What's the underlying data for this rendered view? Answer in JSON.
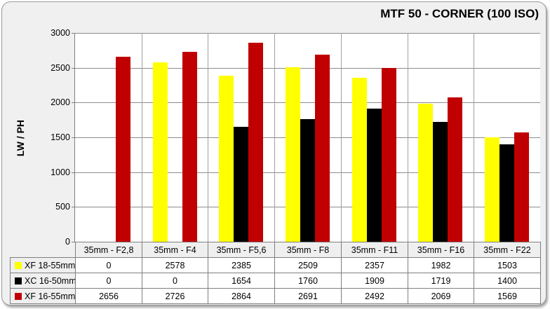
{
  "chart_data": {
    "type": "bar",
    "title": "MTF 50 - CORNER (100 ISO)",
    "ylabel": "LW / PH",
    "xlabel": "",
    "ylim": [
      0,
      3000
    ],
    "yticks": [
      0,
      500,
      1000,
      1500,
      2000,
      2500,
      3000
    ],
    "grid": true,
    "legend_position": "table-left",
    "categories": [
      "35mm - F2,8",
      "35mm - F4",
      "35mm - F5,6",
      "35mm - F8",
      "35mm - F11",
      "35mm - F16",
      "35mm - F22"
    ],
    "series": [
      {
        "name": "XF 18-55mm",
        "color": "#ffff00",
        "values": [
          0,
          2578,
          2385,
          2509,
          2357,
          1982,
          1503
        ]
      },
      {
        "name": "XC 16-50mm",
        "color": "#000000",
        "values": [
          0,
          0,
          1654,
          1760,
          1909,
          1719,
          1400
        ]
      },
      {
        "name": "XF 16-55mm",
        "color": "#c00000",
        "values": [
          2656,
          2726,
          2864,
          2691,
          2492,
          2069,
          1569
        ]
      }
    ]
  },
  "colors": {
    "frame_bg": "#f0f0f0",
    "frame_border": "#9a9a9a",
    "plot_bg": "#ffffff",
    "gridline": "#8c8c8c",
    "axis": "#7f7f7f",
    "table_border": "#7f7f7f",
    "header_bg": "#efefef",
    "value_cell_bg": "#ffffff"
  }
}
